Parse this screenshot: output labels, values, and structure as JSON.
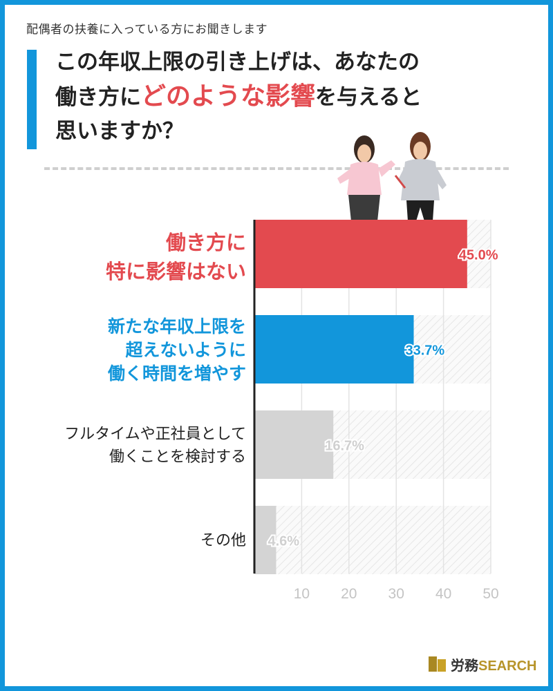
{
  "header": {
    "subtitle": "配偶者の扶養に入っている方にお聞きします",
    "title_line1": "この年収上限の引き上げは、あなたの",
    "title_line2_pre": "働き方に",
    "title_line2_highlight": "どのような影響",
    "title_line2_post": "を与えると",
    "title_line3": "思いますか？"
  },
  "chart_data": {
    "type": "bar",
    "orientation": "horizontal",
    "categories": [
      [
        "働き方に",
        "特に影響はない"
      ],
      [
        "新たな年収上限を",
        "超えないように",
        "働く時間を増やす"
      ],
      [
        "フルタイムや正社員として",
        "働くことを検討する"
      ],
      [
        "その他"
      ]
    ],
    "values": [
      45.0,
      33.7,
      16.7,
      4.6
    ],
    "value_labels": [
      "45.0%",
      "33.7%",
      "16.7%",
      "4.6%"
    ],
    "x_ticks": [
      "10",
      "20",
      "30",
      "40",
      "50"
    ],
    "xlim": [
      0,
      50
    ],
    "grid": true,
    "bar_colors": [
      "#e34a4f",
      "#1296db",
      "#d4d4d4",
      "#d4d4d4"
    ],
    "label_colors": [
      "#e34a4f",
      "#1296db",
      "#222222",
      "#222222"
    ],
    "value_label_colors": [
      "#e34a4f",
      "#1296db",
      "#d0d0d0",
      "#d0d0d0"
    ]
  },
  "brand": {
    "name_jp": "労務",
    "name_en": "SEARCH",
    "accent": "#c9a227"
  },
  "colors": {
    "frame": "#1296db",
    "highlight": "#e34a4f"
  }
}
